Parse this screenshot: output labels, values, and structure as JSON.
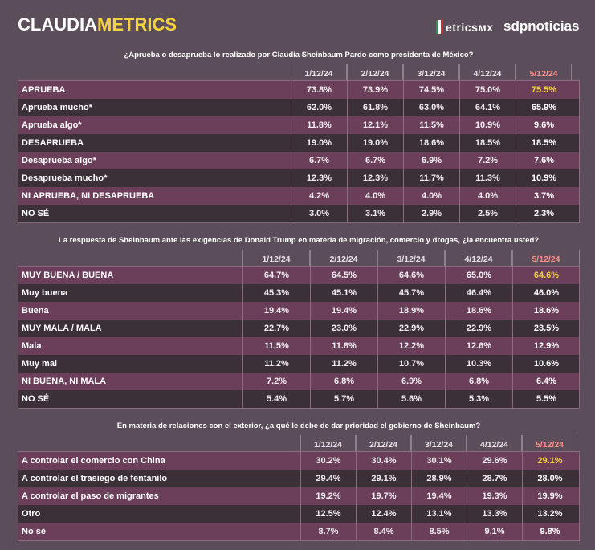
{
  "header": {
    "brand_part1": "CLAUDIA",
    "brand_part2": "METRICS",
    "partner1": "etricsмx",
    "partner2": "sdpnoticias",
    "colors": {
      "accent_yellow": "#f5d23c",
      "latest_date": "#ff8e88"
    }
  },
  "tables": [
    {
      "question": "¿Aprueba o desaprueba lo realizado por Claudia Sheinbaum Pardo como presidenta de México?",
      "dates": [
        "1/12/24",
        "2/12/24",
        "3/12/24",
        "4/12/24",
        "5/12/24"
      ],
      "rows": [
        {
          "label": "APRUEBA",
          "values": [
            "73.8%",
            "73.9%",
            "74.5%",
            "75.0%",
            "75.5%"
          ]
        },
        {
          "label": "Aprueba mucho*",
          "values": [
            "62.0%",
            "61.8%",
            "63.0%",
            "64.1%",
            "65.9%"
          ]
        },
        {
          "label": "Aprueba algo*",
          "values": [
            "11.8%",
            "12.1%",
            "11.5%",
            "10.9%",
            "9.6%"
          ]
        },
        {
          "label": "DESAPRUEBA",
          "values": [
            "19.0%",
            "19.0%",
            "18.6%",
            "18.5%",
            "18.5%"
          ]
        },
        {
          "label": "Desaprueba algo*",
          "values": [
            "6.7%",
            "6.7%",
            "6.9%",
            "7.2%",
            "7.6%"
          ]
        },
        {
          "label": "Desaprueba mucho*",
          "values": [
            "12.3%",
            "12.3%",
            "11.7%",
            "11.3%",
            "10.9%"
          ]
        },
        {
          "label": "NI APRUEBA, NI DESAPRUEBA",
          "values": [
            "4.2%",
            "4.0%",
            "4.0%",
            "4.0%",
            "3.7%"
          ]
        },
        {
          "label": "NO SÉ",
          "values": [
            "3.0%",
            "3.1%",
            "2.9%",
            "2.5%",
            "2.3%"
          ]
        }
      ]
    },
    {
      "question": "La respuesta de Sheinbaum ante las exigencias de Donald Trump en materia de migración, comercio y drogas, ¿la encuentra usted?",
      "dates": [
        "1/12/24",
        "2/12/24",
        "3/12/24",
        "4/12/24",
        "5/12/24"
      ],
      "rows": [
        {
          "label": "MUY BUENA / BUENA",
          "values": [
            "64.7%",
            "64.5%",
            "64.6%",
            "65.0%",
            "64.6%"
          ]
        },
        {
          "label": "Muy buena",
          "values": [
            "45.3%",
            "45.1%",
            "45.7%",
            "46.4%",
            "46.0%"
          ]
        },
        {
          "label": "Buena",
          "values": [
            "19.4%",
            "19.4%",
            "18.9%",
            "18.6%",
            "18.6%"
          ]
        },
        {
          "label": "MUY MALA / MALA",
          "values": [
            "22.7%",
            "23.0%",
            "22.9%",
            "22.9%",
            "23.5%"
          ]
        },
        {
          "label": "Mala",
          "values": [
            "11.5%",
            "11.8%",
            "12.2%",
            "12.6%",
            "12.9%"
          ]
        },
        {
          "label": "Muy mal",
          "values": [
            "11.2%",
            "11.2%",
            "10.7%",
            "10.3%",
            "10.6%"
          ]
        },
        {
          "label": "NI BUENA, NI MALA",
          "values": [
            "7.2%",
            "6.8%",
            "6.9%",
            "6.8%",
            "6.4%"
          ]
        },
        {
          "label": "NO SÉ",
          "values": [
            "5.4%",
            "5.7%",
            "5.6%",
            "5.3%",
            "5.5%"
          ]
        }
      ]
    },
    {
      "question": "En materia de relaciones con el exterior, ¿a qué le debe de dar prioridad el gobierno de Sheinbaum?",
      "dates": [
        "1/12/24",
        "2/12/24",
        "3/12/24",
        "4/12/24",
        "5/12/24"
      ],
      "rows": [
        {
          "label": "A controlar el comercio con China",
          "values": [
            "30.2%",
            "30.4%",
            "30.1%",
            "29.6%",
            "29.1%"
          ]
        },
        {
          "label": "A controlar el trasiego de fentanilo",
          "values": [
            "29.4%",
            "29.1%",
            "28.9%",
            "28.7%",
            "28.0%"
          ]
        },
        {
          "label": "A controlar el paso de migrantes",
          "values": [
            "19.2%",
            "19.7%",
            "19.4%",
            "19.3%",
            "19.9%"
          ]
        },
        {
          "label": "Otro",
          "values": [
            "12.5%",
            "12.4%",
            "13.1%",
            "13.3%",
            "13.2%"
          ]
        },
        {
          "label": "No sé",
          "values": [
            "8.7%",
            "8.4%",
            "8.5%",
            "9.1%",
            "9.8%"
          ]
        }
      ]
    }
  ]
}
